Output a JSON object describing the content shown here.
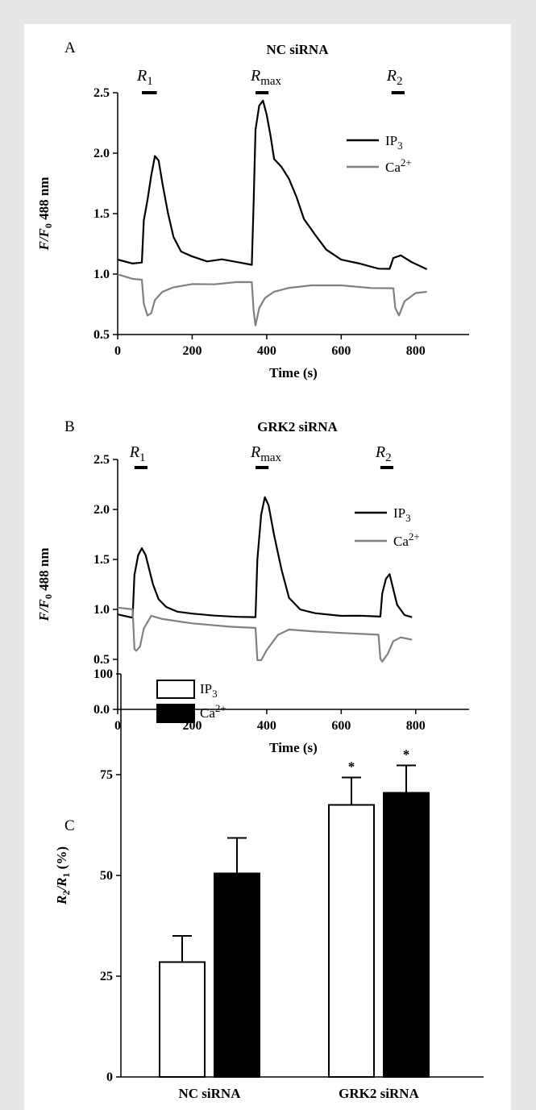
{
  "chart_data": [
    {
      "panel": "A",
      "type": "line",
      "title": "NC siRNA",
      "xlabel": "Time (s)",
      "ylabel": "F/F0 488 nm",
      "xlim": [
        0,
        900
      ],
      "ylim": [
        0.5,
        2.5
      ],
      "xticks": [
        "0",
        "200",
        "400",
        "600",
        "800"
      ],
      "yticks": [
        "0.5",
        "1.0",
        "1.5",
        "2.0",
        "2.5"
      ],
      "legend_position": "top-right",
      "markers": [
        {
          "label": "R1",
          "x": [
            65,
            105
          ]
        },
        {
          "label": "Rmax",
          "x": [
            370,
            405
          ]
        },
        {
          "label": "R2",
          "x": [
            735,
            770
          ]
        }
      ],
      "series": [
        {
          "name": "IP3",
          "color": "#000000",
          "x": [
            0,
            40,
            65,
            70,
            80,
            90,
            100,
            110,
            120,
            135,
            150,
            170,
            200,
            240,
            280,
            320,
            360,
            365,
            370,
            380,
            390,
            400,
            410,
            420,
            440,
            460,
            480,
            500,
            530,
            560,
            600,
            650,
            700,
            730,
            740,
            760,
            790,
            830
          ],
          "y": [
            1.12,
            1.09,
            1.1,
            1.45,
            1.62,
            1.82,
            1.98,
            1.94,
            1.75,
            1.5,
            1.3,
            1.18,
            1.14,
            1.1,
            1.12,
            1.1,
            1.08,
            1.6,
            2.2,
            2.4,
            2.44,
            2.32,
            2.15,
            1.95,
            1.88,
            1.78,
            1.63,
            1.45,
            1.32,
            1.2,
            1.12,
            1.09,
            1.05,
            1.05,
            1.14,
            1.16,
            1.1,
            1.04
          ]
        },
        {
          "name": "Ca2+",
          "color": "#808080",
          "x": [
            0,
            40,
            65,
            70,
            80,
            90,
            100,
            120,
            150,
            200,
            260,
            320,
            360,
            365,
            370,
            380,
            395,
            420,
            460,
            520,
            600,
            680,
            740,
            745,
            755,
            770,
            800,
            830
          ],
          "y": [
            1.0,
            0.96,
            0.95,
            0.75,
            0.65,
            0.67,
            0.78,
            0.85,
            0.89,
            0.92,
            0.92,
            0.94,
            0.94,
            0.7,
            0.58,
            0.72,
            0.8,
            0.85,
            0.88,
            0.9,
            0.9,
            0.88,
            0.88,
            0.72,
            0.66,
            0.78,
            0.85,
            0.86
          ]
        }
      ]
    },
    {
      "panel": "B",
      "type": "line",
      "title": "GRK2 siRNA",
      "xlabel": "Time (s)",
      "ylabel": "F/F0 488 nm",
      "xlim": [
        0,
        900
      ],
      "ylim": [
        0.0,
        2.5
      ],
      "xticks": [
        "0",
        "200",
        "400",
        "600",
        "800"
      ],
      "yticks": [
        "0.0",
        "0.5",
        "1.0",
        "1.5",
        "2.0",
        "2.5"
      ],
      "legend_position": "top-right",
      "markers": [
        {
          "label": "R1",
          "x": [
            45,
            80
          ]
        },
        {
          "label": "Rmax",
          "x": [
            370,
            405
          ]
        },
        {
          "label": "R2",
          "x": [
            705,
            740
          ]
        }
      ],
      "series": [
        {
          "name": "IP3",
          "color": "#000000",
          "x": [
            0,
            40,
            45,
            55,
            65,
            75,
            85,
            95,
            110,
            130,
            160,
            200,
            260,
            320,
            370,
            375,
            385,
            395,
            405,
            420,
            440,
            460,
            490,
            530,
            600,
            650,
            705,
            710,
            720,
            730,
            740,
            750,
            770,
            790
          ],
          "y": [
            0.95,
            0.92,
            1.35,
            1.55,
            1.62,
            1.55,
            1.4,
            1.25,
            1.1,
            1.02,
            0.97,
            0.95,
            0.93,
            0.92,
            0.92,
            1.5,
            1.95,
            2.13,
            2.05,
            1.75,
            1.4,
            1.12,
            1.0,
            0.96,
            0.93,
            0.93,
            0.92,
            1.15,
            1.3,
            1.35,
            1.2,
            1.05,
            0.95,
            0.93
          ]
        },
        {
          "name": "Ca2+",
          "color": "#808080",
          "x": [
            0,
            40,
            45,
            50,
            60,
            70,
            90,
            120,
            200,
            300,
            370,
            375,
            385,
            400,
            430,
            460,
            520,
            600,
            700,
            705,
            710,
            725,
            740,
            760,
            790
          ],
          "y": [
            1.02,
            1.0,
            0.6,
            0.58,
            0.62,
            0.8,
            0.93,
            0.9,
            0.86,
            0.83,
            0.82,
            0.5,
            0.5,
            0.6,
            0.75,
            0.8,
            0.78,
            0.76,
            0.74,
            0.5,
            0.47,
            0.55,
            0.68,
            0.72,
            0.7
          ]
        }
      ]
    },
    {
      "panel": "C",
      "type": "bar",
      "ylabel": "R2/R1 (%)",
      "ylim": [
        0,
        100
      ],
      "yticks": [
        "0",
        "25",
        "50",
        "75",
        "100"
      ],
      "categories": [
        "NC siRNA",
        "GRK2 siRNA"
      ],
      "legend_position": "top-left",
      "series": [
        {
          "name": "IP3",
          "fill": "#ffffff",
          "values": [
            28.5,
            67.5
          ],
          "errors": [
            6.5,
            6.8
          ],
          "significance": [
            "",
            "*"
          ]
        },
        {
          "name": "Ca2+",
          "fill": "#000000",
          "values": [
            50.5,
            70.5
          ],
          "errors": [
            8.8,
            6.8
          ],
          "significance": [
            "",
            "*"
          ]
        }
      ]
    }
  ]
}
